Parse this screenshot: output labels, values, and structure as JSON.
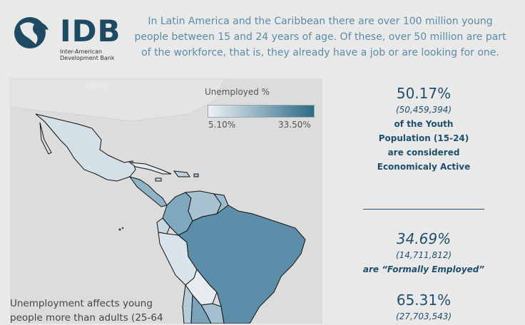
{
  "logo": {
    "name": "IDB",
    "subtitle_line1": "Inter-American",
    "subtitle_line2": "Development Bank"
  },
  "intro": {
    "text": "In Latin America and the Caribbean there are over 100 million young people between 15 and 24 years of age. Of these, over 50 million are part of the workforce, that is, they already have a job or are looking for one."
  },
  "map": {
    "faint_label": "States",
    "legend": {
      "title": "Unemployed %",
      "min": "5.10%",
      "max": "33.50%"
    },
    "colors": {
      "low": "#eef2f4",
      "high": "#2e6a86",
      "background": "#dcdcdc"
    }
  },
  "note": {
    "text": "Unemployment affects young people more than adults (25-64"
  },
  "stats": {
    "block1": {
      "percent": "50.17%",
      "count": "(50,459,394)",
      "line1": "of the Youth",
      "line2": "Population (15-24)",
      "line3": "are considered",
      "line4": "Economicaly Active"
    },
    "block2": {
      "percent": "34.69%",
      "count": "(14,711,812)",
      "label": "are “Formally Employed”"
    },
    "block3": {
      "percent": "65.31%",
      "count": "(27,703,543)"
    }
  }
}
